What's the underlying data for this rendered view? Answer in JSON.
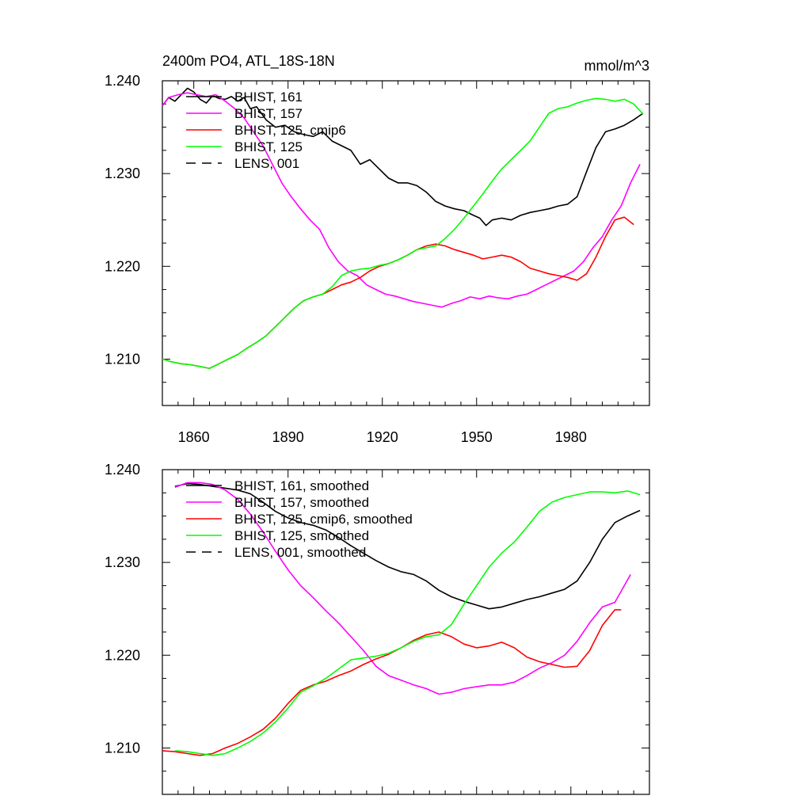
{
  "chart_data": [
    {
      "type": "line",
      "title": "2400m PO4, ATL_18S-18N",
      "units": "mmol/m^3",
      "xlim": [
        1850,
        2005
      ],
      "ylim": [
        1.205,
        1.24
      ],
      "xticks": [
        1860,
        1890,
        1920,
        1950,
        1980
      ],
      "xtick_labels": [
        "1860",
        "1890",
        "1920",
        "1950",
        "1980"
      ],
      "yticks": [
        1.21,
        1.22,
        1.23,
        1.24
      ],
      "ytick_labels": [
        "1.210",
        "1.220",
        "1.230",
        "1.240"
      ],
      "legend": [
        "BHIST, 161",
        "BHIST, 157",
        "BHIST, 125, cmip6",
        "BHIST, 125",
        "LENS, 001"
      ],
      "series": [
        {
          "name": "BHIST, 161",
          "color": "#000000",
          "dash": "solid",
          "x": [
            1850,
            1852,
            1854,
            1856,
            1858,
            1860,
            1862,
            1864,
            1866,
            1868,
            1870,
            1872,
            1874,
            1876,
            1878,
            1880,
            1883,
            1886,
            1889,
            1892,
            1895,
            1898,
            1901,
            1904,
            1907,
            1910,
            1913,
            1916,
            1919,
            1922,
            1925,
            1928,
            1931,
            1934,
            1937,
            1940,
            1943,
            1946,
            1949,
            1951,
            1953,
            1955,
            1958,
            1961,
            1964,
            1967,
            1970,
            1973,
            1976,
            1979,
            1982,
            1985,
            1988,
            1991,
            1994,
            1997,
            2000,
            2003
          ],
          "y": [
            1.2373,
            1.2382,
            1.2378,
            1.2385,
            1.2392,
            1.2388,
            1.238,
            1.2376,
            1.2384,
            1.2381,
            1.238,
            1.2383,
            1.2378,
            1.2382,
            1.237,
            1.2372,
            1.2358,
            1.235,
            1.2352,
            1.2345,
            1.2342,
            1.234,
            1.2345,
            1.2335,
            1.233,
            1.2325,
            1.231,
            1.2315,
            1.2305,
            1.2295,
            1.229,
            1.229,
            1.2287,
            1.228,
            1.227,
            1.2265,
            1.2262,
            1.226,
            1.2255,
            1.2252,
            1.2244,
            1.225,
            1.2252,
            1.225,
            1.2255,
            1.2258,
            1.226,
            1.2262,
            1.2265,
            1.2267,
            1.2275,
            1.2302,
            1.2328,
            1.2345,
            1.2348,
            1.2352,
            1.2358,
            1.2365
          ]
        },
        {
          "name": "BHIST, 157",
          "color": "#ff00ff",
          "dash": "solid",
          "x": [
            1850,
            1852,
            1855,
            1858,
            1861,
            1864,
            1867,
            1870,
            1873,
            1876,
            1879,
            1882,
            1885,
            1888,
            1891,
            1894,
            1897,
            1900,
            1903,
            1906,
            1909,
            1912,
            1915,
            1918,
            1921,
            1924,
            1927,
            1930,
            1933,
            1936,
            1939,
            1942,
            1945,
            1948,
            1951,
            1954,
            1957,
            1960,
            1963,
            1966,
            1969,
            1972,
            1975,
            1978,
            1981,
            1984,
            1987,
            1990,
            1993,
            1996,
            1999,
            2002
          ],
          "y": [
            1.2373,
            1.2382,
            1.2385,
            1.2387,
            1.2385,
            1.2383,
            1.2385,
            1.2378,
            1.237,
            1.236,
            1.2345,
            1.233,
            1.231,
            1.229,
            1.2275,
            1.2262,
            1.225,
            1.224,
            1.222,
            1.2205,
            1.2195,
            1.219,
            1.218,
            1.2175,
            1.217,
            1.2168,
            1.2165,
            1.2162,
            1.216,
            1.2158,
            1.2156,
            1.216,
            1.2163,
            1.2167,
            1.2165,
            1.2168,
            1.2166,
            1.2165,
            1.2168,
            1.217,
            1.2175,
            1.218,
            1.2185,
            1.219,
            1.2195,
            1.2205,
            1.222,
            1.2232,
            1.225,
            1.2265,
            1.229,
            1.231
          ]
        },
        {
          "name": "BHIST, 125, cmip6",
          "color": "#ff0000",
          "dash": "solid",
          "x": [
            1850,
            1853,
            1856,
            1859,
            1862,
            1865,
            1868,
            1871,
            1874,
            1877,
            1880,
            1883,
            1886,
            1889,
            1892,
            1895,
            1898,
            1901,
            1904,
            1907,
            1910,
            1913,
            1916,
            1919,
            1922,
            1925,
            1928,
            1931,
            1934,
            1937,
            1940,
            1943,
            1946,
            1949,
            1952,
            1955,
            1958,
            1961,
            1964,
            1967,
            1970,
            1973,
            1976,
            1979,
            1982,
            1985,
            1988,
            1991,
            1994,
            1997,
            2000
          ],
          "y": [
            1.21,
            1.2097,
            1.2095,
            1.2094,
            1.2092,
            1.209,
            1.2095,
            1.21,
            1.2105,
            1.2112,
            1.2118,
            1.2125,
            1.2135,
            1.2145,
            1.2155,
            1.2163,
            1.2167,
            1.217,
            1.2175,
            1.218,
            1.2183,
            1.2188,
            1.2195,
            1.22,
            1.2203,
            1.2207,
            1.2212,
            1.2218,
            1.2222,
            1.2224,
            1.2222,
            1.2218,
            1.2215,
            1.2212,
            1.2208,
            1.221,
            1.2212,
            1.221,
            1.2205,
            1.2198,
            1.2195,
            1.2192,
            1.219,
            1.2188,
            1.2185,
            1.2192,
            1.221,
            1.2232,
            1.225,
            1.2253,
            1.2245
          ]
        },
        {
          "name": "BHIST, 125",
          "color": "#00ff00",
          "dash": "solid",
          "x": [
            1850,
            1853,
            1856,
            1859,
            1862,
            1865,
            1868,
            1871,
            1874,
            1877,
            1880,
            1883,
            1886,
            1889,
            1892,
            1895,
            1898,
            1901,
            1904,
            1907,
            1910,
            1913,
            1916,
            1919,
            1922,
            1925,
            1928,
            1931,
            1934,
            1937,
            1940,
            1943,
            1946,
            1949,
            1952,
            1955,
            1958,
            1961,
            1964,
            1967,
            1970,
            1973,
            1976,
            1979,
            1982,
            1985,
            1988,
            1991,
            1994,
            1997,
            2000,
            2003
          ],
          "y": [
            1.21,
            1.2097,
            1.2095,
            1.2094,
            1.2092,
            1.209,
            1.2095,
            1.21,
            1.2105,
            1.2112,
            1.2118,
            1.2125,
            1.2135,
            1.2145,
            1.2155,
            1.2163,
            1.2167,
            1.217,
            1.2178,
            1.219,
            1.2195,
            1.2197,
            1.2198,
            1.2201,
            1.2203,
            1.2207,
            1.2212,
            1.2218,
            1.222,
            1.2222,
            1.223,
            1.224,
            1.2252,
            1.2265,
            1.2278,
            1.2292,
            1.2305,
            1.2315,
            1.2325,
            1.2335,
            1.235,
            1.2365,
            1.237,
            1.2372,
            1.2376,
            1.2379,
            1.2381,
            1.238,
            1.2378,
            1.238,
            1.2375,
            1.2364
          ]
        },
        {
          "name": "LENS, 001",
          "color": "#000000",
          "dash": "dashed",
          "x": [],
          "y": []
        }
      ]
    },
    {
      "type": "line",
      "title": "",
      "units": "",
      "xlim": [
        1850,
        2005
      ],
      "ylim": [
        1.205,
        1.24
      ],
      "xticks": [
        1860,
        1890,
        1920,
        1950,
        1980
      ],
      "xtick_labels": [],
      "yticks": [
        1.21,
        1.22,
        1.23,
        1.24
      ],
      "ytick_labels": [
        "1.210",
        "1.220",
        "1.230",
        "1.240"
      ],
      "legend": [
        "BHIST, 161, smoothed",
        "BHIST, 157, smoothed",
        "BHIST, 125, cmip6, smoothed",
        "BHIST, 125, smoothed",
        "LENS, 001, smoothed"
      ],
      "series": [
        {
          "name": "BHIST, 161, smoothed",
          "color": "#000000",
          "dash": "solid",
          "x": [
            1854,
            1858,
            1862,
            1866,
            1870,
            1874,
            1878,
            1882,
            1886,
            1890,
            1894,
            1898,
            1902,
            1906,
            1910,
            1914,
            1918,
            1922,
            1926,
            1930,
            1934,
            1938,
            1942,
            1946,
            1950,
            1954,
            1958,
            1962,
            1966,
            1970,
            1974,
            1978,
            1982,
            1986,
            1990,
            1994,
            1998,
            2002
          ],
          "y": [
            1.2382,
            1.2385,
            1.2384,
            1.2382,
            1.238,
            1.2378,
            1.2374,
            1.2365,
            1.2355,
            1.2348,
            1.2343,
            1.234,
            1.2335,
            1.2327,
            1.2318,
            1.231,
            1.2302,
            1.2295,
            1.229,
            1.2287,
            1.228,
            1.227,
            1.2263,
            1.2258,
            1.2254,
            1.225,
            1.2252,
            1.2256,
            1.226,
            1.2263,
            1.2267,
            1.2271,
            1.228,
            1.23,
            1.2325,
            1.2343,
            1.235,
            1.2356
          ]
        },
        {
          "name": "BHIST, 157, smoothed",
          "color": "#ff00ff",
          "dash": "solid",
          "x": [
            1854,
            1858,
            1862,
            1866,
            1870,
            1874,
            1878,
            1882,
            1886,
            1890,
            1894,
            1898,
            1902,
            1906,
            1910,
            1914,
            1918,
            1922,
            1926,
            1930,
            1934,
            1938,
            1942,
            1946,
            1950,
            1954,
            1958,
            1962,
            1966,
            1970,
            1974,
            1978,
            1982,
            1986,
            1990,
            1994,
            1999
          ],
          "y": [
            1.2381,
            1.2386,
            1.2386,
            1.2384,
            1.2378,
            1.2368,
            1.2352,
            1.2333,
            1.2312,
            1.2292,
            1.2275,
            1.2262,
            1.2248,
            1.2235,
            1.222,
            1.2205,
            1.2188,
            1.2178,
            1.2173,
            1.2168,
            1.2164,
            1.2158,
            1.216,
            1.2164,
            1.2166,
            1.2168,
            1.2168,
            1.2171,
            1.2178,
            1.2186,
            1.2192,
            1.22,
            1.2215,
            1.2235,
            1.2252,
            1.2257,
            1.2287
          ]
        },
        {
          "name": "BHIST, 125, cmip6, smoothed",
          "color": "#ff0000",
          "dash": "solid",
          "x": [
            1850,
            1854,
            1858,
            1862,
            1866,
            1870,
            1874,
            1878,
            1882,
            1886,
            1890,
            1894,
            1898,
            1902,
            1906,
            1910,
            1914,
            1918,
            1922,
            1926,
            1930,
            1934,
            1938,
            1942,
            1946,
            1950,
            1954,
            1958,
            1962,
            1966,
            1970,
            1974,
            1978,
            1982,
            1986,
            1990,
            1994,
            1996
          ],
          "y": [
            1.2097,
            1.2096,
            1.2094,
            1.2092,
            1.2094,
            1.21,
            1.2105,
            1.2112,
            1.212,
            1.2132,
            1.2148,
            1.2162,
            1.2168,
            1.2172,
            1.2178,
            1.2183,
            1.219,
            1.2196,
            1.2201,
            1.2208,
            1.2216,
            1.2222,
            1.2225,
            1.222,
            1.2212,
            1.2208,
            1.221,
            1.2214,
            1.2208,
            1.2198,
            1.2193,
            1.219,
            1.2187,
            1.2188,
            1.2205,
            1.2232,
            1.2249,
            1.2249
          ]
        },
        {
          "name": "BHIST, 125, smoothed",
          "color": "#00ff00",
          "dash": "solid",
          "x": [
            1854,
            1858,
            1862,
            1866,
            1870,
            1874,
            1878,
            1882,
            1886,
            1890,
            1894,
            1898,
            1902,
            1906,
            1910,
            1914,
            1918,
            1922,
            1926,
            1930,
            1934,
            1938,
            1942,
            1946,
            1950,
            1954,
            1958,
            1962,
            1966,
            1970,
            1974,
            1978,
            1982,
            1986,
            1990,
            1994,
            1998,
            2002
          ],
          "y": [
            1.2097,
            1.2096,
            1.2094,
            1.2092,
            1.2094,
            1.21,
            1.2107,
            1.2116,
            1.2128,
            1.2143,
            1.216,
            1.2167,
            1.2175,
            1.2185,
            1.2195,
            1.2197,
            1.2199,
            1.2202,
            1.2208,
            1.2215,
            1.222,
            1.2222,
            1.2233,
            1.2255,
            1.2275,
            1.2295,
            1.231,
            1.2322,
            1.2338,
            1.2355,
            1.2365,
            1.237,
            1.2373,
            1.2376,
            1.2376,
            1.2375,
            1.2377,
            1.2373
          ]
        },
        {
          "name": "LENS, 001, smoothed",
          "color": "#000000",
          "dash": "dashed",
          "x": [],
          "y": []
        }
      ]
    }
  ]
}
